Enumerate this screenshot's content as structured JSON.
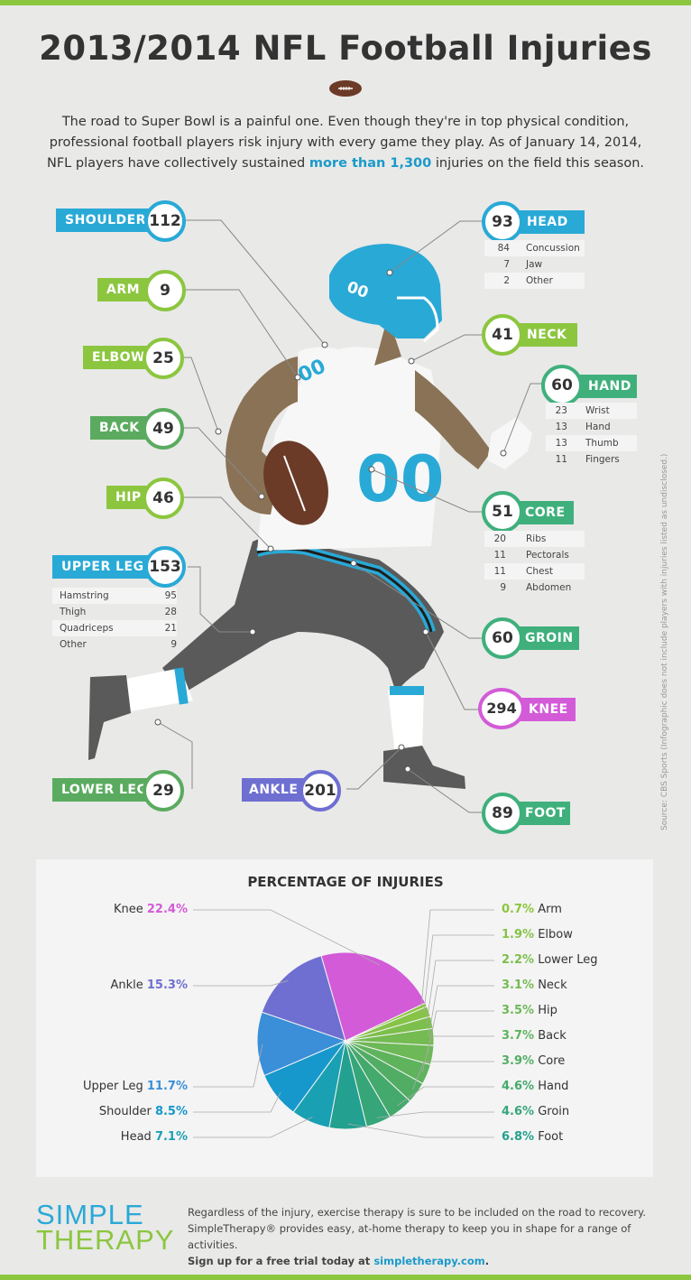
{
  "header": {
    "title": "2013/2014 NFL Football Injuries",
    "intro_before": "The road to Super Bowl is a painful one. Even though they're in top physical condition, professional football players risk injury with every game they play. As of January 14, 2014, NFL players have collectively sustained ",
    "intro_highlight": "more than 1,300",
    "intro_after": " injuries on the field this season."
  },
  "colors": {
    "blue": "#29a9d6",
    "green": "#8cc63f",
    "darkgreen": "#5aab5f",
    "teal": "#3fb07c",
    "purple": "#6e6fd1",
    "magenta": "#d35bd8"
  },
  "body_parts": [
    {
      "id": "shoulder",
      "label": "SHOULDER",
      "count": "112",
      "color": "#29a9d6"
    },
    {
      "id": "arm",
      "label": "ARM",
      "count": "9",
      "color": "#8cc63f"
    },
    {
      "id": "elbow",
      "label": "ELBOW",
      "count": "25",
      "color": "#8cc63f"
    },
    {
      "id": "back",
      "label": "BACK",
      "count": "49",
      "color": "#5aab5f"
    },
    {
      "id": "hip",
      "label": "HIP",
      "count": "46",
      "color": "#8cc63f"
    },
    {
      "id": "upper-leg",
      "label": "UPPER LEG",
      "count": "153",
      "color": "#29a9d6"
    },
    {
      "id": "lower-leg",
      "label": "LOWER LEG",
      "count": "29",
      "color": "#5aab5f"
    },
    {
      "id": "ankle",
      "label": "ANKLE",
      "count": "201",
      "color": "#6e6fd1"
    },
    {
      "id": "head",
      "label": "HEAD",
      "count": "93",
      "color": "#29a9d6"
    },
    {
      "id": "neck",
      "label": "NECK",
      "count": "41",
      "color": "#8cc63f"
    },
    {
      "id": "hand",
      "label": "HAND",
      "count": "60",
      "color": "#3fb07c"
    },
    {
      "id": "core",
      "label": "CORE",
      "count": "51",
      "color": "#3fb07c"
    },
    {
      "id": "groin",
      "label": "GROIN",
      "count": "60",
      "color": "#3fb07c"
    },
    {
      "id": "knee",
      "label": "KNEE",
      "count": "294",
      "color": "#d35bd8"
    },
    {
      "id": "foot",
      "label": "FOOT",
      "count": "89",
      "color": "#3fb07c"
    }
  ],
  "breakdowns": {
    "head": [
      [
        "84",
        "Concussion"
      ],
      [
        "7",
        "Jaw"
      ],
      [
        "2",
        "Other"
      ]
    ],
    "hand": [
      [
        "23",
        "Wrist"
      ],
      [
        "13",
        "Hand"
      ],
      [
        "13",
        "Thumb"
      ],
      [
        "11",
        "Fingers"
      ]
    ],
    "core": [
      [
        "20",
        "Ribs"
      ],
      [
        "11",
        "Pectorals"
      ],
      [
        "11",
        "Chest"
      ],
      [
        "9",
        "Abdomen"
      ]
    ],
    "upper_leg": [
      [
        "Hamstring",
        "95"
      ],
      [
        "Thigh",
        "28"
      ],
      [
        "Quadriceps",
        "21"
      ],
      [
        "Other",
        "9"
      ]
    ]
  },
  "jersey_number": "00",
  "source_note": "Source: CBS Sports   (Infographic does not include players with injuries listed as undisclosed.)",
  "chart_data": {
    "type": "pie",
    "title": "PERCENTAGE OF INJURIES",
    "slices": [
      {
        "label": "Knee",
        "pct": 22.4,
        "display": "22.4%",
        "color": "#d35bd8"
      },
      {
        "label": "Arm",
        "pct": 0.7,
        "display": "0.7%",
        "color": "#8cc63f"
      },
      {
        "label": "Elbow",
        "pct": 1.9,
        "display": "1.9%",
        "color": "#86c347"
      },
      {
        "label": "Lower Leg",
        "pct": 2.2,
        "display": "2.2%",
        "color": "#7cbf4c"
      },
      {
        "label": "Neck",
        "pct": 3.1,
        "display": "3.1%",
        "color": "#74bb52"
      },
      {
        "label": "Hip",
        "pct": 3.5,
        "display": "3.5%",
        "color": "#6db857"
      },
      {
        "label": "Back",
        "pct": 3.7,
        "display": "3.7%",
        "color": "#5fb35d"
      },
      {
        "label": "Core",
        "pct": 3.9,
        "display": "3.9%",
        "color": "#52ad64"
      },
      {
        "label": "Hand",
        "pct": 4.6,
        "display": "4.6%",
        "color": "#44a96c"
      },
      {
        "label": "Groin",
        "pct": 4.6,
        "display": "4.6%",
        "color": "#36a679"
      },
      {
        "label": "Foot",
        "pct": 6.8,
        "display": "6.8%",
        "color": "#23a08f"
      },
      {
        "label": "Head",
        "pct": 7.1,
        "display": "7.1%",
        "color": "#1aa0b3"
      },
      {
        "label": "Shoulder",
        "pct": 8.5,
        "display": "8.5%",
        "color": "#1698cc"
      },
      {
        "label": "Upper Leg",
        "pct": 11.7,
        "display": "11.7%",
        "color": "#3a8fd8"
      },
      {
        "label": "Ankle",
        "pct": 15.3,
        "display": "15.3%",
        "color": "#6e6fd1"
      }
    ]
  },
  "footer": {
    "logo_line1": "SIMPLE",
    "logo_line2": "THERAPY",
    "text1": "Regardless of the injury, exercise therapy is sure to be included on the road to recovery.",
    "text2": "SimpleTherapy® provides easy, at-home therapy to keep you in shape for a range of activities.",
    "text3_before": "Sign up for a free trial today at ",
    "text3_link": "simpletherapy.com",
    "text3_after": "."
  }
}
